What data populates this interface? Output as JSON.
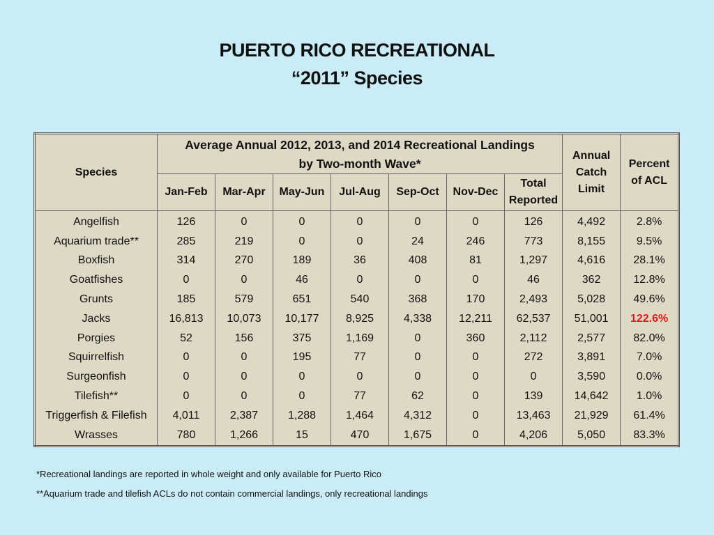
{
  "title_line1": "PUERTO RICO RECREATIONAL",
  "title_line2": "“2011” Species",
  "table": {
    "species_header": "Species",
    "group_header_line1": "Average Annual 2012, 2013, and 2014 Recreational Landings",
    "group_header_line2": "by Two-month Wave*",
    "wave_headers": [
      "Jan-Feb",
      "Mar-Apr",
      "May-Jun",
      "Jul-Aug",
      "Sep-Oct",
      "Nov-Dec"
    ],
    "total_header": [
      "Total",
      "Reported"
    ],
    "acl_header": [
      "Annual",
      "Catch",
      "Limit"
    ],
    "pct_header": [
      "Percent",
      "of ACL"
    ],
    "highlight_color": "#e8141b",
    "rows": [
      [
        "Angelfish",
        "126",
        "0",
        "0",
        "0",
        "0",
        "0",
        "126",
        "4,492",
        "2.8%"
      ],
      [
        "Aquarium trade**",
        "285",
        "219",
        "0",
        "0",
        "24",
        "246",
        "773",
        "8,155",
        "9.5%"
      ],
      [
        "Boxfish",
        "314",
        "270",
        "189",
        "36",
        "408",
        "81",
        "1,297",
        "4,616",
        "28.1%"
      ],
      [
        "Goatfishes",
        "0",
        "0",
        "46",
        "0",
        "0",
        "0",
        "46",
        "362",
        "12.8%"
      ],
      [
        "Grunts",
        "185",
        "579",
        "651",
        "540",
        "368",
        "170",
        "2,493",
        "5,028",
        "49.6%"
      ],
      [
        "Jacks",
        "16,813",
        "10,073",
        "10,177",
        "8,925",
        "4,338",
        "12,211",
        "62,537",
        "51,001",
        "122.6%"
      ],
      [
        "Porgies",
        "52",
        "156",
        "375",
        "1,169",
        "0",
        "360",
        "2,112",
        "2,577",
        "82.0%"
      ],
      [
        "Squirrelfish",
        "0",
        "0",
        "195",
        "77",
        "0",
        "0",
        "272",
        "3,891",
        "7.0%"
      ],
      [
        "Surgeonfish",
        "0",
        "0",
        "0",
        "0",
        "0",
        "0",
        "0",
        "3,590",
        "0.0%"
      ],
      [
        "Tilefish**",
        "0",
        "0",
        "0",
        "77",
        "62",
        "0",
        "139",
        "14,642",
        "1.0%"
      ],
      [
        "Triggerfish & Filefish",
        "4,011",
        "2,387",
        "1,288",
        "1,464",
        "4,312",
        "0",
        "13,463",
        "21,929",
        "61.4%"
      ],
      [
        "Wrasses",
        "780",
        "1,266",
        "15",
        "470",
        "1,675",
        "0",
        "4,206",
        "5,050",
        "83.3%"
      ]
    ]
  },
  "footnote1": "*Recreational landings are reported in whole weight and only available for Puerto Rico",
  "footnote2": "**Aquarium trade and tilefish ACLs do not contain commercial landings, only recreational landings"
}
